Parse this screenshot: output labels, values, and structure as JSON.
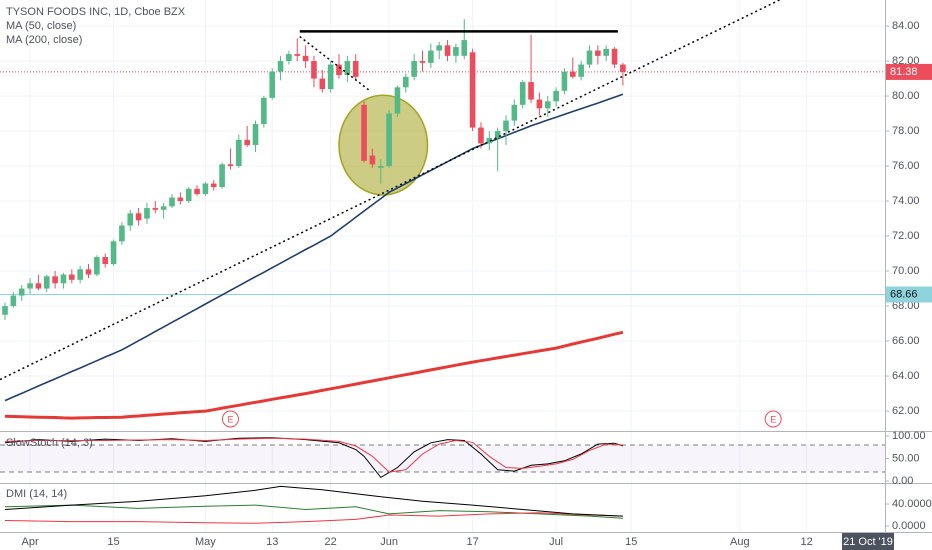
{
  "chart_data": [
    {
      "type": "candlestick",
      "title": "TYSON FOODS INC, 1D, Cboe BZX",
      "up_color": "#53b987",
      "down_color": "#eb4d5c",
      "xlim": [
        -0.6,
        105.39
      ],
      "xticks": [
        {
          "value": 3,
          "label": "Apr"
        },
        {
          "value": 13,
          "label": "15"
        },
        {
          "value": 24,
          "label": "May"
        },
        {
          "value": 32,
          "label": "13"
        },
        {
          "value": 39,
          "label": "22"
        },
        {
          "value": 46,
          "label": "Jun"
        },
        {
          "value": 56,
          "label": "17"
        },
        {
          "value": 66,
          "label": "Jul"
        },
        {
          "value": 75,
          "label": "15"
        },
        {
          "value": 88,
          "label": "Aug"
        },
        {
          "value": 96,
          "label": "12"
        }
      ],
      "ylim": [
        60.86,
        85.49
      ],
      "yticks": [
        {
          "value": 62,
          "label": "62.00"
        },
        {
          "value": 64,
          "label": "64.00"
        },
        {
          "value": 66,
          "label": "66.00"
        },
        {
          "value": 68,
          "label": "68.00"
        },
        {
          "value": 70,
          "label": "70.00"
        },
        {
          "value": 72,
          "label": "72.00"
        },
        {
          "value": 74,
          "label": "74.00"
        },
        {
          "value": 76,
          "label": "76.00"
        },
        {
          "value": 78,
          "label": "78.00"
        },
        {
          "value": 80,
          "label": "80.00"
        },
        {
          "value": 82,
          "label": "82.00"
        },
        {
          "value": 84,
          "label": "84.00"
        }
      ],
      "grid": true,
      "cursor_date": "21 Oct '19",
      "ohlc": [
        [
          67.5,
          68.2,
          67.2,
          68.0
        ],
        [
          68.0,
          68.8,
          67.9,
          68.6
        ],
        [
          68.6,
          69.2,
          68.3,
          69.0
        ],
        [
          69.0,
          69.6,
          68.7,
          69.3
        ],
        [
          69.3,
          69.8,
          68.9,
          69.0
        ],
        [
          69.0,
          69.8,
          68.8,
          69.7
        ],
        [
          69.7,
          70.0,
          69.0,
          69.3
        ],
        [
          69.3,
          69.9,
          69.0,
          69.8
        ],
        [
          69.8,
          70.1,
          69.3,
          69.5
        ],
        [
          69.5,
          70.3,
          69.3,
          70.1
        ],
        [
          70.1,
          70.4,
          69.6,
          69.8
        ],
        [
          69.8,
          70.9,
          69.7,
          70.8
        ],
        [
          70.8,
          71.0,
          70.2,
          70.4
        ],
        [
          70.4,
          71.8,
          70.3,
          71.7
        ],
        [
          71.7,
          72.8,
          71.5,
          72.6
        ],
        [
          72.6,
          73.5,
          72.3,
          73.3
        ],
        [
          73.3,
          73.6,
          72.6,
          72.9
        ],
        [
          73.0,
          73.9,
          72.7,
          73.6
        ],
        [
          73.6,
          74.0,
          73.3,
          73.5
        ],
        [
          73.5,
          73.9,
          73.0,
          73.7
        ],
        [
          73.7,
          74.4,
          73.6,
          74.2
        ],
        [
          74.2,
          74.5,
          73.8,
          74.0
        ],
        [
          74.0,
          74.8,
          73.9,
          74.7
        ],
        [
          74.7,
          74.9,
          74.3,
          74.4
        ],
        [
          74.4,
          75.1,
          74.3,
          75.0
        ],
        [
          75.0,
          75.2,
          74.6,
          74.8
        ],
        [
          74.8,
          76.2,
          74.7,
          76.1
        ],
        [
          76.1,
          77.0,
          75.8,
          76.0
        ],
        [
          76.0,
          77.8,
          75.9,
          77.5
        ],
        [
          77.5,
          78.3,
          77.1,
          77.2
        ],
        [
          77.2,
          78.6,
          76.8,
          78.4
        ],
        [
          78.4,
          80.0,
          78.2,
          79.9
        ],
        [
          79.9,
          81.6,
          79.8,
          81.4
        ],
        [
          81.4,
          82.3,
          80.9,
          82.0
        ],
        [
          82.0,
          82.6,
          81.8,
          82.4
        ],
        [
          82.4,
          83.3,
          82.0,
          82.3
        ],
        [
          82.3,
          82.9,
          81.6,
          82.0
        ],
        [
          82.0,
          82.3,
          80.5,
          81.0
        ],
        [
          81.0,
          81.5,
          80.2,
          80.4
        ],
        [
          80.4,
          82.0,
          80.2,
          81.8
        ],
        [
          81.8,
          82.4,
          81.0,
          81.2
        ],
        [
          81.2,
          82.3,
          80.8,
          82.0
        ],
        [
          82.0,
          82.4,
          80.9,
          81.1
        ],
        [
          79.5,
          79.7,
          76.2,
          76.3
        ],
        [
          76.6,
          77.0,
          75.9,
          76.1
        ],
        [
          75.9,
          76.4,
          75.0,
          76.0
        ],
        [
          76.0,
          79.2,
          75.9,
          79.0
        ],
        [
          79.0,
          80.6,
          78.8,
          80.5
        ],
        [
          80.5,
          81.3,
          80.2,
          81.1
        ],
        [
          81.1,
          82.4,
          80.9,
          82.0
        ],
        [
          82.0,
          82.6,
          81.4,
          81.9
        ],
        [
          81.9,
          83.0,
          81.6,
          82.6
        ],
        [
          82.6,
          83.1,
          82.1,
          82.9
        ],
        [
          82.9,
          83.2,
          82.0,
          82.3
        ],
        [
          82.3,
          83.0,
          81.9,
          82.8
        ],
        [
          82.3,
          84.4,
          82.1,
          83.2
        ],
        [
          82.5,
          82.7,
          78.0,
          78.2
        ],
        [
          78.2,
          78.5,
          77.0,
          77.3
        ],
        [
          77.3,
          78.0,
          76.9,
          77.6
        ],
        [
          77.6,
          78.2,
          75.7,
          78.0
        ],
        [
          78.0,
          78.9,
          77.2,
          78.6
        ],
        [
          78.6,
          79.8,
          78.3,
          79.5
        ],
        [
          79.5,
          80.9,
          79.3,
          80.8
        ],
        [
          80.8,
          83.5,
          79.6,
          79.8
        ],
        [
          79.8,
          80.2,
          78.9,
          79.3
        ],
        [
          79.3,
          80.0,
          78.8,
          79.7
        ],
        [
          79.7,
          80.5,
          79.4,
          80.3
        ],
        [
          80.3,
          81.6,
          80.1,
          81.4
        ],
        [
          81.4,
          82.2,
          81.0,
          81.1
        ],
        [
          81.1,
          82.0,
          80.9,
          81.8
        ],
        [
          81.8,
          82.9,
          81.6,
          82.6
        ],
        [
          82.6,
          82.9,
          81.8,
          82.3
        ],
        [
          82.3,
          82.9,
          82.0,
          82.7
        ],
        [
          82.7,
          82.8,
          81.6,
          81.8
        ],
        [
          81.8,
          81.9,
          80.6,
          81.38
        ]
      ],
      "series": [
        {
          "name": "MA (50, close)",
          "color": "#1f3e6b",
          "values": [
            62.6,
            62.81,
            63.01,
            63.22,
            63.43,
            63.64,
            63.84,
            64.05,
            64.26,
            64.46,
            64.67,
            64.88,
            65.09,
            65.29,
            65.5,
            65.76,
            66.02,
            66.28,
            66.55,
            66.81,
            67.07,
            67.33,
            67.59,
            67.85,
            68.12,
            68.38,
            68.64,
            68.9,
            69.16,
            69.42,
            69.68,
            69.93,
            70.19,
            70.45,
            70.71,
            70.97,
            71.23,
            71.48,
            71.74,
            72.0,
            72.36,
            72.71,
            73.07,
            73.43,
            73.79,
            74.14,
            74.5,
            74.75,
            75.0,
            75.25,
            75.5,
            75.75,
            76.0,
            76.25,
            76.5,
            76.75,
            77.0,
            77.19,
            77.37,
            77.56,
            77.74,
            77.93,
            78.11,
            78.3,
            78.46,
            78.63,
            78.79,
            78.95,
            79.12,
            79.28,
            79.44,
            79.6,
            79.77,
            79.93,
            80.1
          ]
        },
        {
          "name": "MA (200, close)",
          "color": "#e53935",
          "values": [
            61.7,
            61.69,
            61.68,
            61.66,
            61.65,
            61.64,
            61.63,
            61.61,
            61.6,
            61.61,
            61.62,
            61.63,
            61.63,
            61.64,
            61.65,
            61.69,
            61.72,
            61.76,
            61.79,
            61.83,
            61.86,
            61.9,
            61.93,
            61.97,
            62.0,
            62.08,
            62.17,
            62.25,
            62.33,
            62.42,
            62.5,
            62.58,
            62.67,
            62.75,
            62.83,
            62.92,
            63.0,
            63.09,
            63.18,
            63.27,
            63.36,
            63.45,
            63.54,
            63.63,
            63.72,
            63.81,
            63.9,
            63.99,
            64.08,
            64.17,
            64.26,
            64.35,
            64.44,
            64.53,
            64.62,
            64.71,
            64.8,
            64.88,
            64.96,
            65.04,
            65.12,
            65.2,
            65.28,
            65.36,
            65.44,
            65.52,
            65.6,
            65.71,
            65.83,
            65.94,
            66.05,
            66.16,
            66.28,
            66.39,
            66.5
          ]
        }
      ],
      "price_lines": [
        {
          "value": 81.38,
          "color": "#eb4d5c"
        },
        {
          "value": 68.66,
          "color": "#8fd3dc"
        }
      ],
      "lines": [
        {
          "x": [
            35.3,
            73.4
          ],
          "y": [
            83.7,
            83.7
          ],
          "color": "#000000",
          "style": "solid"
        },
        {
          "x": [
            -0.6,
            92.8
          ],
          "y": [
            63.8,
            85.5
          ],
          "color": "#000000",
          "style": "dotted"
        },
        {
          "x": [
            35.3,
            43.7
          ],
          "y": [
            83.4,
            80.3
          ],
          "color": "#000000",
          "style": "dotted"
        }
      ],
      "ellipse": {
        "cx": 45.3,
        "cy": 77.2,
        "rx": 5.3,
        "ry": 2.85,
        "color": "#a3a31f"
      },
      "events": [
        {
          "x": 27,
          "label": "E"
        },
        {
          "x": 92,
          "label": "E"
        }
      ]
    },
    {
      "type": "line",
      "title": "SlowStoch (14, 3)",
      "ylim": [
        -4.4,
        111.1
      ],
      "yticks": [
        {
          "value": 0,
          "label": "0.00"
        },
        {
          "value": 50,
          "label": "50.00"
        },
        {
          "value": 100,
          "label": "100.00"
        }
      ],
      "band": [
        20,
        80
      ],
      "series": [
        {
          "color": "#000000",
          "x": [
            0,
            4,
            8,
            12,
            16,
            20,
            24,
            28,
            32,
            36,
            40,
            42,
            43,
            45,
            47,
            49,
            51,
            53,
            55,
            57,
            59,
            61,
            63,
            65,
            67,
            69,
            71,
            73,
            74
          ],
          "values": [
            85,
            92,
            88,
            93,
            90,
            94,
            88,
            95,
            96,
            92,
            85,
            70,
            55,
            8,
            30,
            65,
            85,
            92,
            90,
            60,
            25,
            22,
            35,
            38,
            45,
            60,
            82,
            84,
            78
          ]
        },
        {
          "color": "#f23645",
          "x": [
            0,
            4,
            8,
            12,
            16,
            20,
            24,
            28,
            32,
            36,
            40,
            42,
            44,
            46,
            48,
            50,
            52,
            54,
            56,
            58,
            60,
            62,
            64,
            66,
            68,
            70,
            72,
            74
          ],
          "values": [
            88,
            90,
            90,
            90,
            91,
            92,
            90,
            93,
            95,
            93,
            88,
            78,
            55,
            20,
            25,
            60,
            82,
            90,
            86,
            55,
            30,
            28,
            33,
            38,
            48,
            68,
            82,
            80
          ]
        }
      ]
    },
    {
      "type": "line",
      "title": "DMI (14, 14)",
      "ylim": [
        -10.9,
        78.2
      ],
      "yticks": [
        {
          "value": 0,
          "label": "0.0000"
        },
        {
          "value": 40,
          "label": "40.0000"
        }
      ],
      "series": [
        {
          "color": "#2e7d32",
          "x": [
            0,
            8,
            16,
            24,
            30,
            36,
            42,
            46,
            52,
            58,
            64,
            70,
            74
          ],
          "values": [
            35,
            38,
            32,
            36,
            38,
            30,
            35,
            22,
            28,
            26,
            22,
            18,
            14
          ]
        },
        {
          "color": "#f23645",
          "x": [
            0,
            8,
            16,
            24,
            30,
            36,
            42,
            46,
            52,
            58,
            64,
            70,
            74
          ],
          "values": [
            10,
            8,
            8,
            6,
            5,
            8,
            12,
            20,
            18,
            22,
            24,
            20,
            18
          ]
        },
        {
          "color": "#000000",
          "x": [
            0,
            8,
            16,
            24,
            30,
            33,
            38,
            44,
            50,
            56,
            62,
            68,
            74
          ],
          "values": [
            30,
            38,
            45,
            55,
            65,
            72,
            66,
            55,
            45,
            38,
            30,
            22,
            18
          ]
        }
      ]
    }
  ]
}
